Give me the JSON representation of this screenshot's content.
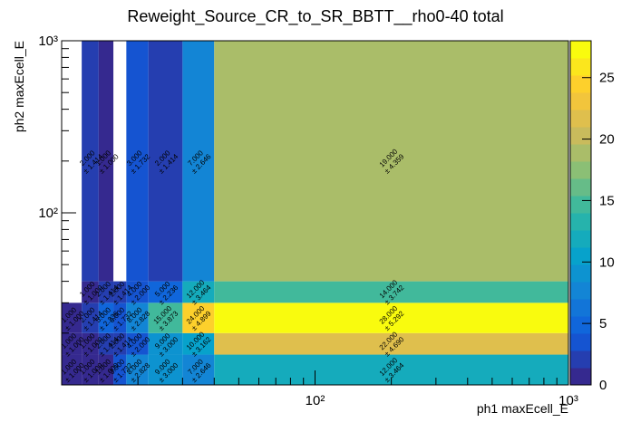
{
  "chart_data": {
    "type": "heatmap",
    "title": "Reweight_Source_CR_to_SR_BBTT__rho0-40 total",
    "xlabel": "ph1 maxEcell_E",
    "ylabel": "ph2 maxEcell_E",
    "log_x": true,
    "log_y": true,
    "xbins": [
      10,
      12,
      14,
      16,
      18,
      22,
      30,
      40,
      1000
    ],
    "ybins": [
      10,
      15,
      20,
      30,
      40,
      1000
    ],
    "values": [
      [
        1,
        1,
        1,
        3,
        8,
        9,
        7,
        12
      ],
      [
        1,
        1,
        2,
        2,
        4,
        9,
        10,
        22
      ],
      [
        1,
        2,
        5,
        3,
        8,
        15,
        24,
        28
      ],
      [
        null,
        1,
        2,
        2,
        4,
        5,
        12,
        14
      ],
      [
        null,
        2,
        1,
        null,
        3,
        2,
        7,
        19
      ]
    ],
    "value_labels": [
      [
        "1.000",
        "1.000",
        "1.000",
        "3.000",
        "8.000",
        "9.000",
        "7.000",
        "12.000"
      ],
      [
        "1.000",
        "1.000",
        "2.000",
        "2.000",
        "4.000",
        "9.000",
        "10.000",
        "22.000"
      ],
      [
        "1.000",
        "2.000",
        "5.000",
        "3.000",
        "8.000",
        "15.000",
        "24.000",
        "28.000"
      ],
      [
        null,
        "1.000",
        "2.000",
        "2.000",
        "4.000",
        "5.000",
        "12.000",
        "14.000"
      ],
      [
        null,
        "2.000",
        "1.000",
        null,
        "3.000",
        "2.000",
        "7.000",
        "19.000"
      ]
    ],
    "errors": [
      [
        1,
        1,
        1,
        1.732,
        2.828,
        3,
        2.646,
        3.464
      ],
      [
        1,
        1,
        1.414,
        1.414,
        2,
        3,
        3.162,
        4.69
      ],
      [
        1,
        1.414,
        2.236,
        1.732,
        2.828,
        3.873,
        4.899,
        5.292
      ],
      [
        null,
        1,
        1.414,
        1.414,
        2,
        2.236,
        3.464,
        3.742
      ],
      [
        null,
        1.414,
        1,
        null,
        1.732,
        1.414,
        2.646,
        4.359
      ]
    ],
    "error_labels": [
      [
        "± 1.000",
        "± 1.000",
        "± 1.000",
        "± 1.732",
        "± 2.828",
        "± 3.000",
        "± 2.646",
        "± 3.464"
      ],
      [
        "± 1.000",
        "± 1.000",
        "± 1.414",
        "± 1.414",
        "± 2.000",
        "± 3.000",
        "± 3.162",
        "± 4.690"
      ],
      [
        "± 1.000",
        "± 1.414",
        "± 2.236",
        "± 1.732",
        "± 2.828",
        "± 3.873",
        "± 4.899",
        "± 5.292"
      ],
      [
        null,
        "± 1.000",
        "± 1.414",
        "± 1.414",
        "± 2.000",
        "± 2.236",
        "± 3.464",
        "± 3.742"
      ],
      [
        null,
        "± 1.414",
        "± 1.000",
        null,
        "± 1.732",
        "± 1.414",
        "± 2.646",
        "± 4.359"
      ]
    ],
    "xlim": [
      10,
      1000
    ],
    "ylim": [
      10,
      1000
    ],
    "xticks": [
      {
        "value": 100,
        "label": "10²"
      },
      {
        "value": 1000,
        "label": "10³"
      }
    ],
    "yticks": [
      {
        "value": 100,
        "label": "10²"
      },
      {
        "value": 1000,
        "label": "10³"
      }
    ],
    "xminorticks": [
      20,
      30,
      40,
      50,
      60,
      70,
      80,
      90,
      200,
      300,
      400,
      500,
      600,
      700,
      800,
      900
    ],
    "yminorticks": [
      20,
      30,
      40,
      50,
      60,
      70,
      80,
      90,
      200,
      300,
      400,
      500,
      600,
      700,
      800,
      900
    ],
    "zlim": [
      0,
      28
    ],
    "zticks": [
      0,
      5,
      10,
      15,
      20,
      25
    ],
    "palette": [
      "#35298f",
      "#0f5cdd",
      "#1481d6",
      "#06a4ca",
      "#2eb7a4",
      "#87bf77",
      "#d1bb59",
      "#fec832",
      "#f9fb0e"
    ],
    "ncolors": 20
  }
}
